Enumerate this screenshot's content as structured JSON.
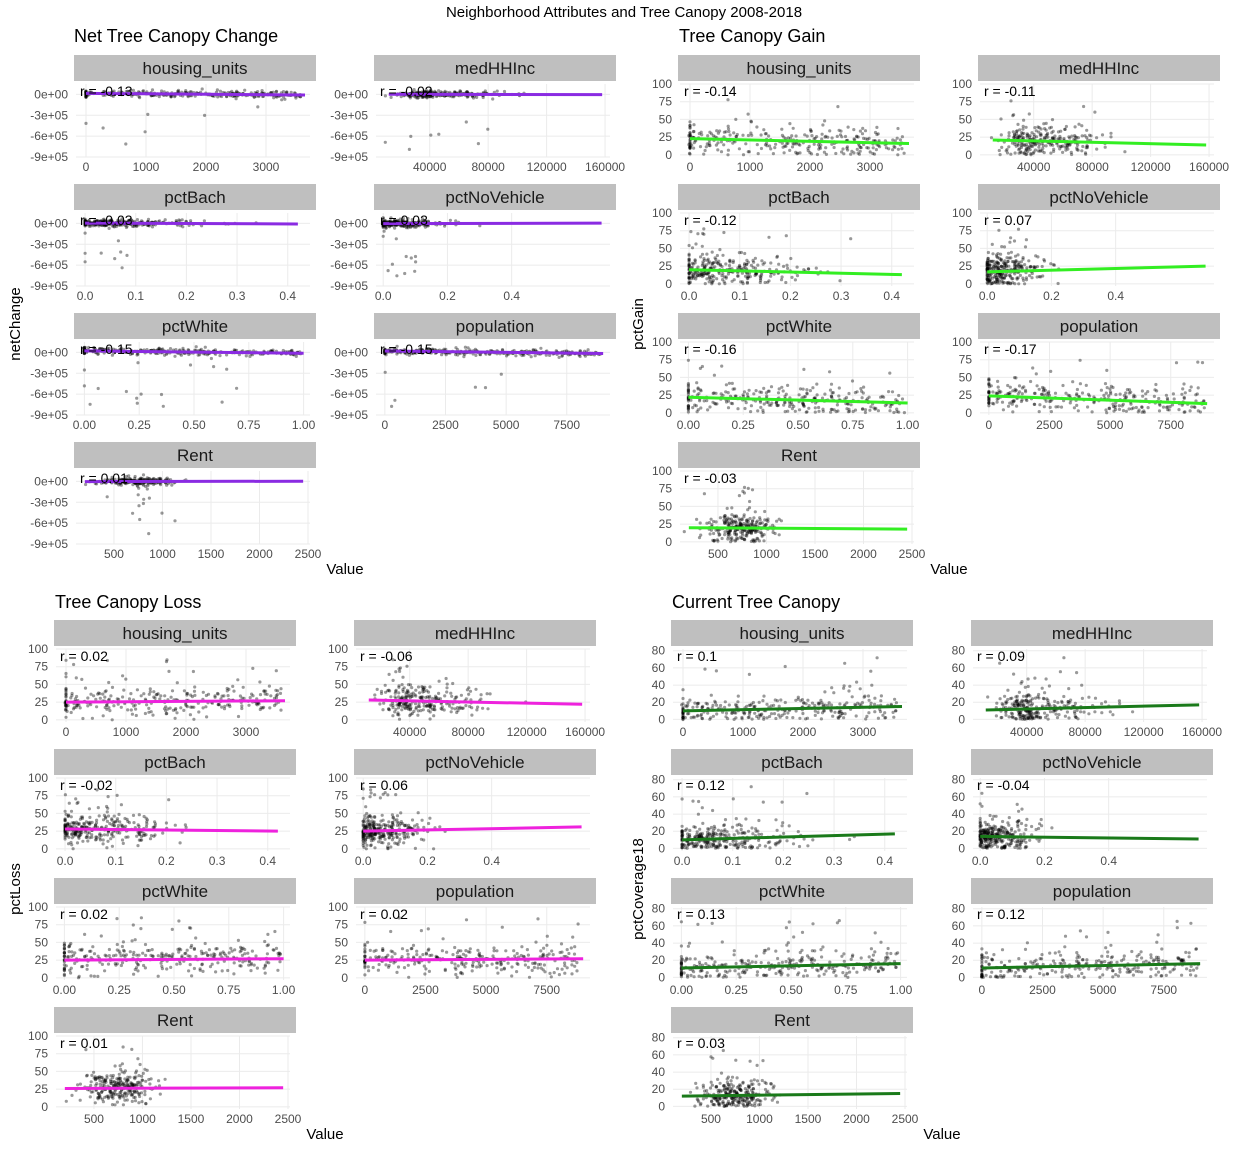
{
  "figure": {
    "title": "Neighborhood Attributes and Tree Canopy 2008-2018"
  },
  "chart_data": [
    {
      "type": "scatter",
      "title": "Net Tree Canopy Change",
      "ylabel": "netChange",
      "xlabel": "Value",
      "color": "#8a2be2",
      "ylim": [
        -900000,
        150000
      ],
      "yticks": [
        0,
        -300000,
        -600000,
        -900000
      ],
      "yticklabels": [
        "0e+00",
        "-3e+05",
        "-6e+05",
        "-9e+05"
      ],
      "facets": [
        {
          "name": "housing_units",
          "r": "r = -0.13",
          "xlim": [
            -100,
            3700
          ],
          "xticks": [
            0,
            1000,
            2000,
            3000
          ],
          "xticklabels": [
            "0",
            "1000",
            "2000",
            "3000"
          ],
          "fit": [
            [
              0,
              15000
            ],
            [
              3650,
              -8000
            ]
          ]
        },
        {
          "name": "medHHInc",
          "r": "r = -0.02",
          "xlim": [
            6000,
            162000
          ],
          "xticks": [
            40000,
            80000,
            120000,
            160000
          ],
          "xticklabels": [
            "40000",
            "80000",
            "120000",
            "160000"
          ],
          "fit": [
            [
              12000,
              3000
            ],
            [
              158000,
              -3000
            ]
          ]
        },
        {
          "name": "pctBach",
          "r": "r = -0.03",
          "xlim": [
            -0.01,
            0.44
          ],
          "xticks": [
            0,
            0.1,
            0.2,
            0.3,
            0.4
          ],
          "xticklabels": [
            "0.0",
            "0.1",
            "0.2",
            "0.3",
            "0.4"
          ],
          "fit": [
            [
              0,
              5000
            ],
            [
              0.42,
              -8000
            ]
          ]
        },
        {
          "name": "pctNoVehicle",
          "r": "r = 0.03",
          "xlim": [
            -0.01,
            0.7
          ],
          "xticks": [
            0,
            0.2,
            0.4
          ],
          "xticklabels": [
            "0.0",
            "0.2",
            "0.4"
          ],
          "fit": [
            [
              0,
              -3000
            ],
            [
              0.68,
              4000
            ]
          ]
        },
        {
          "name": "pctWhite",
          "r": "r = -0.15",
          "xlim": [
            -0.02,
            1.02
          ],
          "xticks": [
            0,
            0.25,
            0.5,
            0.75,
            1
          ],
          "xticklabels": [
            "0.00",
            "0.25",
            "0.50",
            "0.75",
            "1.00"
          ],
          "fit": [
            [
              0,
              22000
            ],
            [
              1,
              -12000
            ]
          ]
        },
        {
          "name": "population",
          "r": "r = -0.15",
          "xlim": [
            -200,
            9200
          ],
          "xticks": [
            0,
            2500,
            5000,
            7500
          ],
          "xticklabels": [
            "0",
            "2500",
            "5000",
            "7500"
          ],
          "fit": [
            [
              0,
              20000
            ],
            [
              9000,
              -15000
            ]
          ]
        },
        {
          "name": "Rent",
          "r": "r = 0.01",
          "xlim": [
            150,
            2500
          ],
          "xticks": [
            500,
            1000,
            1500,
            2000,
            2500
          ],
          "xticklabels": [
            "500",
            "1000",
            "1500",
            "2000",
            "2500"
          ],
          "fit": [
            [
              200,
              -3000
            ],
            [
              2450,
              3000
            ]
          ]
        }
      ]
    },
    {
      "type": "scatter",
      "title": "Tree Canopy Gain",
      "ylabel": "pctGain",
      "xlabel": "Value",
      "color": "#33ee22",
      "ylim": [
        -3,
        100
      ],
      "yticks": [
        0,
        25,
        50,
        75,
        100
      ],
      "yticklabels": [
        "0",
        "25",
        "50",
        "75",
        "100"
      ],
      "facets": [
        {
          "name": "housing_units",
          "r": "r = -0.14",
          "xlim": [
            -100,
            3700
          ],
          "xticks": [
            0,
            1000,
            2000,
            3000
          ],
          "xticklabels": [
            "0",
            "1000",
            "2000",
            "3000"
          ],
          "fit": [
            [
              0,
              23
            ],
            [
              3650,
              16
            ]
          ]
        },
        {
          "name": "medHHInc",
          "r": "r = -0.11",
          "xlim": [
            6000,
            162000
          ],
          "xticks": [
            40000,
            80000,
            120000,
            160000
          ],
          "xticklabels": [
            "40000",
            "80000",
            "120000",
            "160000"
          ],
          "fit": [
            [
              12000,
              21
            ],
            [
              158000,
              14
            ]
          ]
        },
        {
          "name": "pctBach",
          "r": "r = -0.12",
          "xlim": [
            -0.01,
            0.44
          ],
          "xticks": [
            0,
            0.1,
            0.2,
            0.3,
            0.4
          ],
          "xticklabels": [
            "0.0",
            "0.1",
            "0.2",
            "0.3",
            "0.4"
          ],
          "fit": [
            [
              0,
              20
            ],
            [
              0.42,
              13
            ]
          ]
        },
        {
          "name": "pctNoVehicle",
          "r": "r = 0.07",
          "xlim": [
            -0.01,
            0.7
          ],
          "xticks": [
            0,
            0.2,
            0.4
          ],
          "xticklabels": [
            "0.0",
            "0.2",
            "0.4"
          ],
          "fit": [
            [
              0,
              17
            ],
            [
              0.68,
              25
            ]
          ]
        },
        {
          "name": "pctWhite",
          "r": "r = -0.16",
          "xlim": [
            -0.02,
            1.02
          ],
          "xticks": [
            0,
            0.25,
            0.5,
            0.75,
            1
          ],
          "xticklabels": [
            "0.00",
            "0.25",
            "0.50",
            "0.75",
            "1.00"
          ],
          "fit": [
            [
              0,
              22
            ],
            [
              1,
              14
            ]
          ]
        },
        {
          "name": "population",
          "r": "r = -0.17",
          "xlim": [
            -200,
            9200
          ],
          "xticks": [
            0,
            2500,
            5000,
            7500
          ],
          "xticklabels": [
            "0",
            "2500",
            "5000",
            "7500"
          ],
          "fit": [
            [
              0,
              24
            ],
            [
              9000,
              13
            ]
          ]
        },
        {
          "name": "Rent",
          "r": "r = -0.03",
          "xlim": [
            150,
            2500
          ],
          "xticks": [
            500,
            1000,
            1500,
            2000,
            2500
          ],
          "xticklabels": [
            "500",
            "1000",
            "1500",
            "2000",
            "2500"
          ],
          "fit": [
            [
              200,
              20
            ],
            [
              2450,
              18
            ]
          ]
        }
      ]
    },
    {
      "type": "scatter",
      "title": "Tree Canopy Loss",
      "ylabel": "pctLoss",
      "xlabel": "Value",
      "color": "#ee22dd",
      "ylim": [
        -3,
        100
      ],
      "yticks": [
        0,
        25,
        50,
        75,
        100
      ],
      "yticklabels": [
        "0",
        "25",
        "50",
        "75",
        "100"
      ],
      "facets": [
        {
          "name": "housing_units",
          "r": "r = 0.02",
          "xlim": [
            -100,
            3700
          ],
          "xticks": [
            0,
            1000,
            2000,
            3000
          ],
          "xticklabels": [
            "0",
            "1000",
            "2000",
            "3000"
          ],
          "fit": [
            [
              0,
              25
            ],
            [
              3650,
              27
            ]
          ]
        },
        {
          "name": "medHHInc",
          "r": "r = -0.06",
          "xlim": [
            6000,
            162000
          ],
          "xticks": [
            40000,
            80000,
            120000,
            160000
          ],
          "xticklabels": [
            "40000",
            "80000",
            "120000",
            "160000"
          ],
          "fit": [
            [
              12000,
              28
            ],
            [
              158000,
              22
            ]
          ]
        },
        {
          "name": "pctBach",
          "r": "r = -0.02",
          "xlim": [
            -0.01,
            0.44
          ],
          "xticks": [
            0,
            0.1,
            0.2,
            0.3,
            0.4
          ],
          "xticklabels": [
            "0.0",
            "0.1",
            "0.2",
            "0.3",
            "0.4"
          ],
          "fit": [
            [
              0,
              28
            ],
            [
              0.42,
              25
            ]
          ]
        },
        {
          "name": "pctNoVehicle",
          "r": "r = 0.06",
          "xlim": [
            -0.01,
            0.7
          ],
          "xticks": [
            0,
            0.2,
            0.4
          ],
          "xticklabels": [
            "0.0",
            "0.2",
            "0.4"
          ],
          "fit": [
            [
              0,
              25
            ],
            [
              0.68,
              31
            ]
          ]
        },
        {
          "name": "pctWhite",
          "r": "r = 0.02",
          "xlim": [
            -0.02,
            1.02
          ],
          "xticks": [
            0,
            0.25,
            0.5,
            0.75,
            1
          ],
          "xticklabels": [
            "0.00",
            "0.25",
            "0.50",
            "0.75",
            "1.00"
          ],
          "fit": [
            [
              0,
              25
            ],
            [
              1,
              27
            ]
          ]
        },
        {
          "name": "population",
          "r": "r = 0.02",
          "xlim": [
            -200,
            9200
          ],
          "xticks": [
            0,
            2500,
            5000,
            7500
          ],
          "xticklabels": [
            "0",
            "2500",
            "5000",
            "7500"
          ],
          "fit": [
            [
              0,
              25
            ],
            [
              9000,
              27
            ]
          ]
        },
        {
          "name": "Rent",
          "r": "r = 0.01",
          "xlim": [
            150,
            2500
          ],
          "xticks": [
            500,
            1000,
            1500,
            2000,
            2500
          ],
          "xticklabels": [
            "500",
            "1000",
            "1500",
            "2000",
            "2500"
          ],
          "fit": [
            [
              200,
              26
            ],
            [
              2450,
              27
            ]
          ]
        }
      ]
    },
    {
      "type": "scatter",
      "title": "Current Tree Canopy",
      "ylabel": "pctCoverage18",
      "xlabel": "Value",
      "color": "#1a7a1a",
      "ylim": [
        -3,
        82
      ],
      "yticks": [
        0,
        20,
        40,
        60,
        80
      ],
      "yticklabels": [
        "0",
        "20",
        "40",
        "60",
        "80"
      ],
      "facets": [
        {
          "name": "housing_units",
          "r": "r = 0.1",
          "xlim": [
            -100,
            3700
          ],
          "xticks": [
            0,
            1000,
            2000,
            3000
          ],
          "xticklabels": [
            "0",
            "1000",
            "2000",
            "3000"
          ],
          "fit": [
            [
              0,
              10
            ],
            [
              3650,
              15
            ]
          ]
        },
        {
          "name": "medHHInc",
          "r": "r = 0.09",
          "xlim": [
            6000,
            162000
          ],
          "xticks": [
            40000,
            80000,
            120000,
            160000
          ],
          "xticklabels": [
            "40000",
            "80000",
            "120000",
            "160000"
          ],
          "fit": [
            [
              12000,
              11
            ],
            [
              158000,
              17
            ]
          ]
        },
        {
          "name": "pctBach",
          "r": "r = 0.12",
          "xlim": [
            -0.01,
            0.44
          ],
          "xticks": [
            0,
            0.1,
            0.2,
            0.3,
            0.4
          ],
          "xticklabels": [
            "0.0",
            "0.1",
            "0.2",
            "0.3",
            "0.4"
          ],
          "fit": [
            [
              0,
              10
            ],
            [
              0.42,
              17
            ]
          ]
        },
        {
          "name": "pctNoVehicle",
          "r": "r = -0.04",
          "xlim": [
            -0.01,
            0.7
          ],
          "xticks": [
            0,
            0.2,
            0.4
          ],
          "xticklabels": [
            "0.0",
            "0.2",
            "0.4"
          ],
          "fit": [
            [
              0,
              14
            ],
            [
              0.68,
              11
            ]
          ]
        },
        {
          "name": "pctWhite",
          "r": "r = 0.13",
          "xlim": [
            -0.02,
            1.02
          ],
          "xticks": [
            0,
            0.25,
            0.5,
            0.75,
            1
          ],
          "xticklabels": [
            "0.00",
            "0.25",
            "0.50",
            "0.75",
            "1.00"
          ],
          "fit": [
            [
              0,
              11
            ],
            [
              1,
              16
            ]
          ]
        },
        {
          "name": "population",
          "r": "r = 0.12",
          "xlim": [
            -200,
            9200
          ],
          "xticks": [
            0,
            2500,
            5000,
            7500
          ],
          "xticklabels": [
            "0",
            "2500",
            "5000",
            "7500"
          ],
          "fit": [
            [
              0,
              11
            ],
            [
              9000,
              16
            ]
          ]
        },
        {
          "name": "Rent",
          "r": "r = 0.03",
          "xlim": [
            150,
            2500
          ],
          "xticks": [
            500,
            1000,
            1500,
            2000,
            2500
          ],
          "xticklabels": [
            "500",
            "1000",
            "1500",
            "2000",
            "2500"
          ],
          "fit": [
            [
              200,
              12
            ],
            [
              2450,
              15
            ]
          ]
        }
      ]
    }
  ]
}
